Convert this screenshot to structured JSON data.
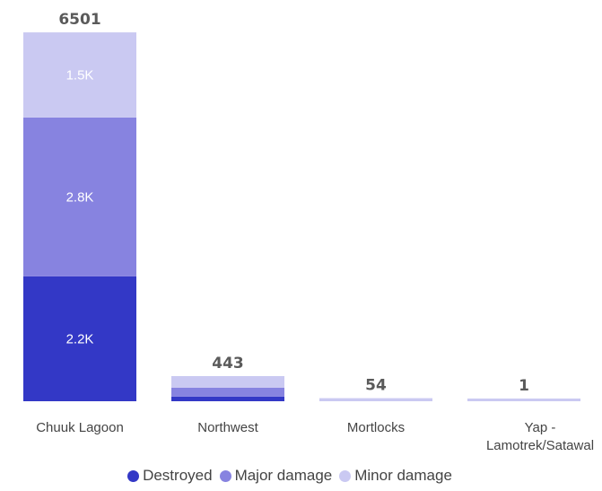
{
  "chart_data": {
    "type": "bar",
    "stacked": true,
    "categories": [
      "Chuuk Lagoon",
      "Northwest",
      "Mortlocks",
      "Yap -|Lamotrek/Satawal"
    ],
    "category_lines": [
      [
        "Chuuk Lagoon"
      ],
      [
        "Northwest"
      ],
      [
        "Mortlocks"
      ],
      [
        "Yap -",
        "Lamotrek/Satawal"
      ]
    ],
    "series": [
      {
        "name": "Destroyed",
        "color": "#3338c6",
        "values": [
          2200,
          80,
          0,
          0
        ],
        "labels": [
          "2.2K",
          "",
          "",
          ""
        ]
      },
      {
        "name": "Major damage",
        "color": "#8783e0",
        "values": [
          2800,
          160,
          0,
          0
        ],
        "labels": [
          "2.8K",
          "",
          "",
          ""
        ]
      },
      {
        "name": "Minor damage",
        "color": "#cac9f2",
        "values": [
          1500,
          203,
          54,
          1
        ],
        "labels": [
          "1.5K",
          "",
          "",
          ""
        ]
      }
    ],
    "totals": [
      "6501",
      "443",
      "54",
      "1"
    ],
    "ylim": [
      0,
      6501
    ],
    "legend_position": "bottom",
    "grid": false
  },
  "legend": {
    "items": [
      {
        "name": "Destroyed",
        "color": "#3338c6"
      },
      {
        "name": "Major damage",
        "color": "#8783e0"
      },
      {
        "name": "Minor damage",
        "color": "#cac9f2"
      }
    ]
  }
}
